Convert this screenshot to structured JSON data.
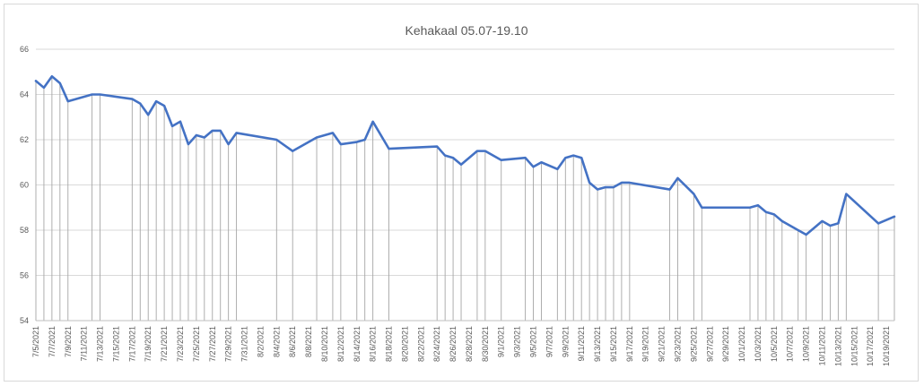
{
  "chart_data": {
    "type": "line",
    "title": "Kehakaal 05.07-19.10",
    "xlabel": "",
    "ylabel": "",
    "ylim": [
      54,
      66
    ],
    "yticks": [
      54,
      56,
      58,
      60,
      62,
      64,
      66
    ],
    "grid": "horizontal",
    "drop_lines": true,
    "series_color": "#4472c4",
    "x_range": [
      "7/5/2021",
      "10/20/2021"
    ],
    "x_tick_labels": [
      "7/5/2021",
      "7/7/2021",
      "7/9/2021",
      "7/11/2021",
      "7/13/2021",
      "7/15/2021",
      "7/17/2021",
      "7/19/2021",
      "7/21/2021",
      "7/23/2021",
      "7/25/2021",
      "7/27/2021",
      "7/29/2021",
      "7/31/2021",
      "8/2/2021",
      "8/4/2021",
      "8/6/2021",
      "8/8/2021",
      "8/10/2021",
      "8/12/2021",
      "8/14/2021",
      "8/16/2021",
      "8/18/2021",
      "8/20/2021",
      "8/22/2021",
      "8/24/2021",
      "8/26/2021",
      "8/28/2021",
      "8/30/2021",
      "9/1/2021",
      "9/3/2021",
      "9/5/2021",
      "9/7/2021",
      "9/9/2021",
      "9/11/2021",
      "9/13/2021",
      "9/15/2021",
      "9/17/2021",
      "9/19/2021",
      "9/21/2021",
      "9/23/2021",
      "9/25/2021",
      "9/27/2021",
      "9/29/2021",
      "10/1/2021",
      "10/3/2021",
      "10/5/2021",
      "10/7/2021",
      "10/9/2021",
      "10/11/2021",
      "10/13/2021",
      "10/15/2021",
      "10/17/2021",
      "10/19/2021"
    ],
    "series": [
      {
        "x": [
          "7/5/2021",
          "7/6/2021",
          "7/7/2021",
          "7/8/2021",
          "7/9/2021",
          "7/12/2021",
          "7/13/2021",
          "7/17/2021",
          "7/18/2021",
          "7/19/2021",
          "7/20/2021",
          "7/21/2021",
          "7/22/2021",
          "7/23/2021",
          "7/24/2021",
          "7/25/2021",
          "7/26/2021",
          "7/27/2021",
          "7/28/2021",
          "7/29/2021",
          "7/30/2021",
          "8/4/2021",
          "8/6/2021",
          "8/9/2021",
          "8/11/2021",
          "8/12/2021",
          "8/14/2021",
          "8/15/2021",
          "8/16/2021",
          "8/18/2021",
          "8/24/2021",
          "8/25/2021",
          "8/26/2021",
          "8/27/2021",
          "8/29/2021",
          "8/30/2021",
          "9/1/2021",
          "9/4/2021",
          "9/5/2021",
          "9/6/2021",
          "9/8/2021",
          "9/9/2021",
          "9/10/2021",
          "9/11/2021",
          "9/12/2021",
          "9/13/2021",
          "9/14/2021",
          "9/15/2021",
          "9/16/2021",
          "9/17/2021",
          "9/22/2021",
          "9/23/2021",
          "9/25/2021",
          "9/26/2021",
          "10/2/2021",
          "10/3/2021",
          "10/4/2021",
          "10/5/2021",
          "10/6/2021",
          "10/8/2021",
          "10/9/2021",
          "10/11/2021",
          "10/12/2021",
          "10/13/2021",
          "10/14/2021",
          "10/18/2021",
          "10/20/2021"
        ],
        "y": [
          64.6,
          64.3,
          64.8,
          64.5,
          63.7,
          64.0,
          64.0,
          63.8,
          63.6,
          63.1,
          63.7,
          63.5,
          62.6,
          62.8,
          61.8,
          62.2,
          62.1,
          62.4,
          62.4,
          61.8,
          62.3,
          62.0,
          61.5,
          62.1,
          62.3,
          61.8,
          61.9,
          62.0,
          62.8,
          61.6,
          61.7,
          61.3,
          61.2,
          60.9,
          61.5,
          61.5,
          61.1,
          61.2,
          60.8,
          61.0,
          60.7,
          61.2,
          61.3,
          61.2,
          60.1,
          59.8,
          59.9,
          59.9,
          60.1,
          60.1,
          59.8,
          60.3,
          59.6,
          59.0,
          59.0,
          59.1,
          58.8,
          58.7,
          58.4,
          58.0,
          57.8,
          58.4,
          58.2,
          58.3,
          59.6,
          58.3,
          58.6
        ]
      }
    ]
  }
}
